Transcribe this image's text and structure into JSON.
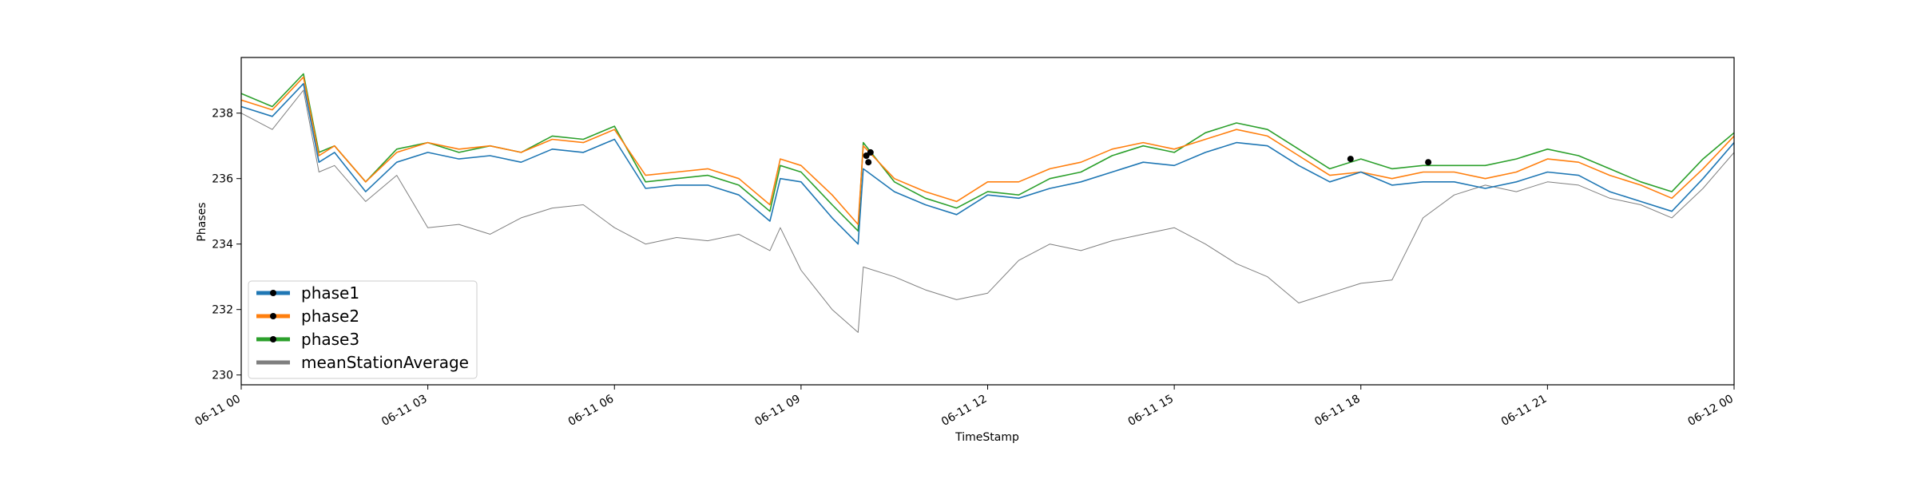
{
  "chart_data": {
    "type": "line",
    "xlabel": "TimeStamp",
    "ylabel": "Phases",
    "xlim": [
      "06-11 00",
      "06-12 00"
    ],
    "ylim": [
      229.7,
      239.7
    ],
    "x_ticks": [
      "06-11 00",
      "06-11 03",
      "06-11 06",
      "06-11 09",
      "06-11 12",
      "06-11 15",
      "06-11 18",
      "06-11 21",
      "06-12 00"
    ],
    "y_ticks": [
      "230",
      "232",
      "234",
      "236",
      "238"
    ],
    "grid": false,
    "legend_position": "lower-left",
    "series": [
      {
        "name": "phase1",
        "color": "#1f77b4",
        "x": [
          "06-11 00:00",
          "06-11 00:30",
          "06-11 01:00",
          "06-11 01:15",
          "06-11 01:30",
          "06-11 02:00",
          "06-11 02:30",
          "06-11 03:00",
          "06-11 03:30",
          "06-11 04:00",
          "06-11 04:30",
          "06-11 05:00",
          "06-11 05:30",
          "06-11 06:00",
          "06-11 06:30",
          "06-11 07:00",
          "06-11 07:30",
          "06-11 08:00",
          "06-11 08:30",
          "06-11 08:40",
          "06-11 09:00",
          "06-11 09:30",
          "06-11 09:55",
          "06-11 10:00",
          "06-11 10:30",
          "06-11 11:00",
          "06-11 11:30",
          "06-11 12:00",
          "06-11 12:30",
          "06-11 13:00",
          "06-11 13:30",
          "06-11 14:00",
          "06-11 14:30",
          "06-11 15:00",
          "06-11 15:30",
          "06-11 16:00",
          "06-11 16:30",
          "06-11 17:00",
          "06-11 17:30",
          "06-11 18:00",
          "06-11 18:30",
          "06-11 19:00",
          "06-11 19:30",
          "06-11 20:00",
          "06-11 20:30",
          "06-11 21:00",
          "06-11 21:30",
          "06-11 22:00",
          "06-11 22:30",
          "06-11 23:00",
          "06-11 23:30",
          "06-12 00:00"
        ],
        "values": [
          238.2,
          237.9,
          238.9,
          236.5,
          236.8,
          235.6,
          236.5,
          236.8,
          236.6,
          236.7,
          236.5,
          236.9,
          236.8,
          237.2,
          235.7,
          235.8,
          235.8,
          235.5,
          234.7,
          236.0,
          235.9,
          234.8,
          234.0,
          236.3,
          235.6,
          235.2,
          234.9,
          235.5,
          235.4,
          235.7,
          235.9,
          236.2,
          236.5,
          236.4,
          236.8,
          237.1,
          237.0,
          236.4,
          235.9,
          236.2,
          235.8,
          235.9,
          235.9,
          235.7,
          235.9,
          236.2,
          236.1,
          235.6,
          235.3,
          235.0,
          236.0,
          237.1
        ]
      },
      {
        "name": "phase2",
        "color": "#ff7f0e",
        "x": [
          "06-11 00:00",
          "06-11 00:30",
          "06-11 01:00",
          "06-11 01:15",
          "06-11 01:30",
          "06-11 02:00",
          "06-11 02:30",
          "06-11 03:00",
          "06-11 03:30",
          "06-11 04:00",
          "06-11 04:30",
          "06-11 05:00",
          "06-11 05:30",
          "06-11 06:00",
          "06-11 06:30",
          "06-11 07:00",
          "06-11 07:30",
          "06-11 08:00",
          "06-11 08:30",
          "06-11 08:40",
          "06-11 09:00",
          "06-11 09:30",
          "06-11 09:55",
          "06-11 10:00",
          "06-11 10:30",
          "06-11 11:00",
          "06-11 11:30",
          "06-11 12:00",
          "06-11 12:30",
          "06-11 13:00",
          "06-11 13:30",
          "06-11 14:00",
          "06-11 14:30",
          "06-11 15:00",
          "06-11 15:30",
          "06-11 16:00",
          "06-11 16:30",
          "06-11 17:00",
          "06-11 17:30",
          "06-11 18:00",
          "06-11 18:30",
          "06-11 19:00",
          "06-11 19:30",
          "06-11 20:00",
          "06-11 20:30",
          "06-11 21:00",
          "06-11 21:30",
          "06-11 22:00",
          "06-11 22:30",
          "06-11 23:00",
          "06-11 23:30",
          "06-12 00:00"
        ],
        "values": [
          238.4,
          238.1,
          239.1,
          236.7,
          237.0,
          235.9,
          236.8,
          237.1,
          236.9,
          237.0,
          236.8,
          237.2,
          237.1,
          237.5,
          236.1,
          236.2,
          236.3,
          236.0,
          235.2,
          236.6,
          236.4,
          235.5,
          234.6,
          237.0,
          236.0,
          235.6,
          235.3,
          235.9,
          235.9,
          236.3,
          236.5,
          236.9,
          237.1,
          236.9,
          237.2,
          237.5,
          237.3,
          236.7,
          236.1,
          236.2,
          236.0,
          236.2,
          236.2,
          236.0,
          236.2,
          236.6,
          236.5,
          236.1,
          235.8,
          235.4,
          236.3,
          237.3
        ]
      },
      {
        "name": "phase3",
        "color": "#2ca02c",
        "x": [
          "06-11 00:00",
          "06-11 00:30",
          "06-11 01:00",
          "06-11 01:15",
          "06-11 01:30",
          "06-11 02:00",
          "06-11 02:30",
          "06-11 03:00",
          "06-11 03:30",
          "06-11 04:00",
          "06-11 04:30",
          "06-11 05:00",
          "06-11 05:30",
          "06-11 06:00",
          "06-11 06:30",
          "06-11 07:00",
          "06-11 07:30",
          "06-11 08:00",
          "06-11 08:30",
          "06-11 08:40",
          "06-11 09:00",
          "06-11 09:30",
          "06-11 09:55",
          "06-11 10:00",
          "06-11 10:30",
          "06-11 11:00",
          "06-11 11:30",
          "06-11 12:00",
          "06-11 12:30",
          "06-11 13:00",
          "06-11 13:30",
          "06-11 14:00",
          "06-11 14:30",
          "06-11 15:00",
          "06-11 15:30",
          "06-11 16:00",
          "06-11 16:30",
          "06-11 17:00",
          "06-11 17:30",
          "06-11 18:00",
          "06-11 18:30",
          "06-11 19:00",
          "06-11 19:30",
          "06-11 20:00",
          "06-11 20:30",
          "06-11 21:00",
          "06-11 21:30",
          "06-11 22:00",
          "06-11 22:30",
          "06-11 23:00",
          "06-11 23:30",
          "06-12 00:00"
        ],
        "values": [
          238.6,
          238.2,
          239.2,
          236.8,
          237.0,
          235.9,
          236.9,
          237.1,
          236.8,
          237.0,
          236.8,
          237.3,
          237.2,
          237.6,
          235.9,
          236.0,
          236.1,
          235.8,
          235.0,
          236.4,
          236.2,
          235.2,
          234.4,
          237.1,
          235.9,
          235.4,
          235.1,
          235.6,
          235.5,
          236.0,
          236.2,
          236.7,
          237.0,
          236.8,
          237.4,
          237.7,
          237.5,
          236.9,
          236.3,
          236.6,
          236.3,
          236.4,
          236.4,
          236.4,
          236.6,
          236.9,
          236.7,
          236.3,
          235.9,
          235.6,
          236.6,
          237.4
        ]
      },
      {
        "name": "meanStationAverage",
        "color": "#7f7f7f",
        "x": [
          "06-11 00:00",
          "06-11 00:30",
          "06-11 01:00",
          "06-11 01:15",
          "06-11 01:30",
          "06-11 02:00",
          "06-11 02:30",
          "06-11 03:00",
          "06-11 03:30",
          "06-11 04:00",
          "06-11 04:30",
          "06-11 05:00",
          "06-11 05:30",
          "06-11 06:00",
          "06-11 06:30",
          "06-11 07:00",
          "06-11 07:30",
          "06-11 08:00",
          "06-11 08:30",
          "06-11 08:40",
          "06-11 09:00",
          "06-11 09:30",
          "06-11 09:55",
          "06-11 10:00",
          "06-11 10:30",
          "06-11 11:00",
          "06-11 11:30",
          "06-11 12:00",
          "06-11 12:30",
          "06-11 13:00",
          "06-11 13:30",
          "06-11 14:00",
          "06-11 14:30",
          "06-11 15:00",
          "06-11 15:30",
          "06-11 16:00",
          "06-11 16:30",
          "06-11 17:00",
          "06-11 17:30",
          "06-11 18:00",
          "06-11 18:30",
          "06-11 19:00",
          "06-11 19:30",
          "06-11 20:00",
          "06-11 20:30",
          "06-11 21:00",
          "06-11 21:30",
          "06-11 22:00",
          "06-11 22:30",
          "06-11 23:00",
          "06-11 23:30",
          "06-12 00:00"
        ],
        "values": [
          238.0,
          237.5,
          238.7,
          236.2,
          236.4,
          235.3,
          236.1,
          234.5,
          234.6,
          234.3,
          234.8,
          235.1,
          235.2,
          234.5,
          234.0,
          234.2,
          234.1,
          234.3,
          233.8,
          234.5,
          233.2,
          232.0,
          231.3,
          233.3,
          233.0,
          232.6,
          232.3,
          232.5,
          233.5,
          234.0,
          233.8,
          234.1,
          234.3,
          234.5,
          234.0,
          233.4,
          233.0,
          232.2,
          232.5,
          232.8,
          232.9,
          234.8,
          235.5,
          235.8,
          235.6,
          235.9,
          235.8,
          235.4,
          235.2,
          234.8,
          235.7,
          236.8
        ]
      }
    ],
    "markers": [
      {
        "series": "phase1",
        "x": "06-11 10:05",
        "y": 236.5
      },
      {
        "series": "phase2",
        "x": "06-11 10:07",
        "y": 236.8
      },
      {
        "series": "phase3",
        "x": "06-11 10:03",
        "y": 236.7
      },
      {
        "series": "phase3",
        "x": "06-11 17:50",
        "y": 236.6
      },
      {
        "series": "phase3",
        "x": "06-11 19:05",
        "y": 236.5
      }
    ]
  }
}
